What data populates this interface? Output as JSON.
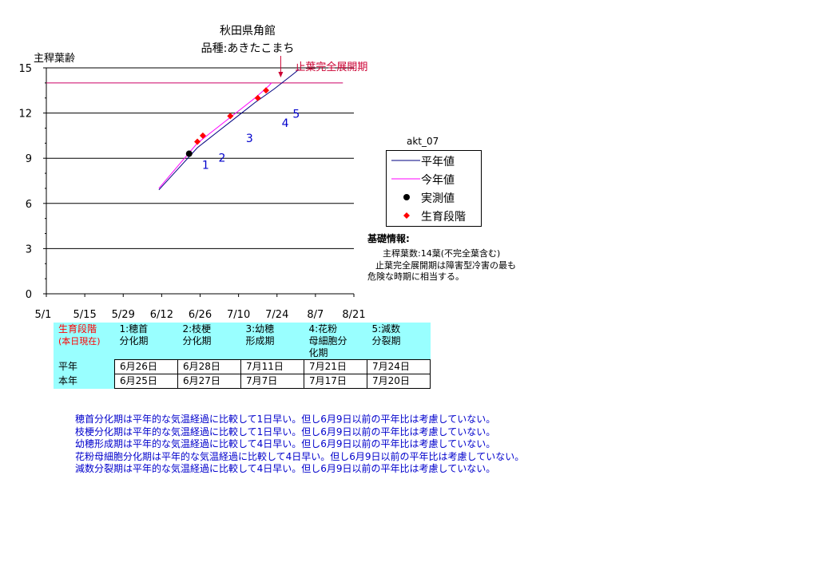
{
  "title": [
    "秋田県角館",
    "品種:あきたこまち"
  ],
  "chart_data": {
    "type": "line",
    "ylabel": "主稈葉齢",
    "ylim": [
      0,
      15
    ],
    "yticks": [
      0,
      3,
      6,
      9,
      12,
      15
    ],
    "xticks": [
      "5/1",
      "5/15",
      "5/29",
      "6/12",
      "6/26",
      "7/10",
      "7/24",
      "8/7",
      "8/21"
    ],
    "xlim": [
      "5/1",
      "8/21"
    ],
    "grid": "horizontal",
    "final_leaf_age": 14,
    "final_leaf_line_range": [
      "5/1",
      "8/17"
    ],
    "series": [
      {
        "name": "平年値",
        "color": "#000080",
        "points": [
          [
            "6/11",
            6.9
          ],
          [
            "6/18",
            8.3
          ],
          [
            "6/25",
            9.7
          ],
          [
            "7/2",
            10.7
          ],
          [
            "7/9",
            11.7
          ],
          [
            "7/16",
            12.7
          ],
          [
            "7/23",
            13.6
          ],
          [
            "7/30",
            14.6
          ],
          [
            "8/1",
            14.9
          ]
        ]
      },
      {
        "name": "今年値",
        "color": "#ff00ff",
        "points": [
          [
            "6/11",
            7.0
          ],
          [
            "6/18",
            8.5
          ],
          [
            "6/25",
            10.0
          ],
          [
            "7/2",
            11.0
          ],
          [
            "7/9",
            12.0
          ],
          [
            "7/16",
            13.0
          ],
          [
            "7/21",
            13.8
          ],
          [
            "7/22",
            14.0
          ]
        ]
      },
      {
        "name": "実測値",
        "color": "#000000",
        "marker": "circle",
        "points": [
          [
            "6/22",
            9.3
          ]
        ]
      },
      {
        "name": "生育段階",
        "color": "#ff0000",
        "marker": "diamond",
        "points": [
          [
            "6/25",
            10.1
          ],
          [
            "6/27",
            10.5
          ],
          [
            "7/7",
            11.8
          ],
          [
            "7/17",
            13.0
          ],
          [
            "7/20",
            13.5
          ]
        ]
      }
    ],
    "annotations": [
      {
        "text": "止葉完全展開期",
        "x": "7/30",
        "y": 15,
        "color": "#cc0033"
      }
    ],
    "stage_labels": [
      {
        "text": "1",
        "x": "6/28",
        "y": 8.6
      },
      {
        "text": "2",
        "x": "7/4",
        "y": 9.1
      },
      {
        "text": "3",
        "x": "7/14",
        "y": 10.4
      },
      {
        "text": "4",
        "x": "7/27",
        "y": 11.4
      },
      {
        "text": "5",
        "x": "7/31",
        "y": 12.0
      }
    ]
  },
  "legend": {
    "caption": "akt_07",
    "items": [
      {
        "label": "平年値",
        "type": "line",
        "color": "#000080"
      },
      {
        "label": "今年値",
        "type": "line",
        "color": "#ff00ff"
      },
      {
        "label": "実測値",
        "type": "circle",
        "color": "#000000"
      },
      {
        "label": "生育段階",
        "type": "diamond",
        "color": "#ff0000"
      }
    ]
  },
  "info": {
    "heading": "基礎情報:",
    "line1": "主稈葉数:14葉(不完全葉含む)",
    "line2": "止葉完全展開期は障害型冷害の最も",
    "line3": "危険な時期に相当する。"
  },
  "table": {
    "corner": [
      "生育段階",
      "(本日現在)"
    ],
    "stages": [
      [
        "1:穂首",
        "分化期"
      ],
      [
        "2:枝梗",
        "分化期"
      ],
      [
        "3:幼穂",
        "形成期"
      ],
      [
        "4:花粉",
        "母細胞分",
        "化期"
      ],
      [
        "5:減数",
        "分裂期"
      ]
    ],
    "rows": [
      {
        "label": "平年",
        "values": [
          "6月26日",
          "6月28日",
          "7月11日",
          "7月21日",
          "7月24日"
        ]
      },
      {
        "label": "本年",
        "values": [
          "6月25日",
          "6月27日",
          "7月7日",
          "7月17日",
          "7月20日"
        ]
      }
    ]
  },
  "notes": [
    "穂首分化期は平年的な気温経過に比較して1日早い。但し6月9日以前の平年比は考慮していない。",
    "枝梗分化期は平年的な気温経過に比較して1日早い。但し6月9日以前の平年比は考慮していない。",
    "幼穂形成期は平年的な気温経過に比較して4日早い。但し6月9日以前の平年比は考慮していない。",
    "花粉母細胞分化期は平年的な気温経過に比較して4日早い。但し6月9日以前の平年比は考慮していない。",
    "減数分裂期は平年的な気温経過に比較して4日早い。但し6月9日以前の平年比は考慮していない。"
  ]
}
